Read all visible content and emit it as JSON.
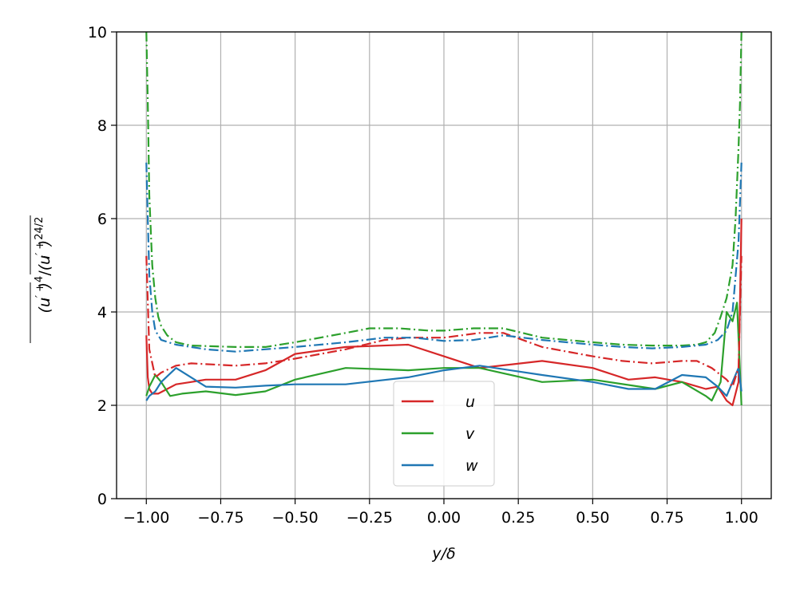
{
  "chart_data": {
    "type": "line",
    "xlabel": "y/δ",
    "ylabel": "(u′ᵢ⁺)⁴/(u′ᵢ⁺)²^4/2",
    "xlim": [
      -1.1,
      1.1
    ],
    "ylim": [
      0,
      10
    ],
    "xticks": [
      -1.0,
      -0.75,
      -0.5,
      -0.25,
      0.0,
      0.25,
      0.5,
      0.75,
      1.0
    ],
    "xtick_labels": [
      "−1.00",
      "−0.75",
      "−0.50",
      "−0.25",
      "0.00",
      "0.25",
      "0.50",
      "0.75",
      "1.00"
    ],
    "yticks": [
      0,
      2,
      4,
      6,
      8,
      10
    ],
    "ytick_labels": [
      "0",
      "2",
      "4",
      "6",
      "8",
      "10"
    ],
    "grid": true,
    "legend_position": "bottom-center",
    "colors": {
      "u": "#d62728",
      "v": "#2ca02c",
      "w": "#1f77b4"
    },
    "legend": [
      {
        "label": "u",
        "color": "#d62728"
      },
      {
        "label": "v",
        "color": "#2ca02c"
      },
      {
        "label": "w",
        "color": "#1f77b4"
      }
    ],
    "series": [
      {
        "name": "u",
        "color": "#d62728",
        "style": "solid",
        "x": [
          -1.0,
          -0.995,
          -0.99,
          -0.98,
          -0.96,
          -0.93,
          -0.9,
          -0.85,
          -0.8,
          -0.7,
          -0.6,
          -0.5,
          -0.33,
          -0.12,
          0.0,
          0.12,
          0.33,
          0.5,
          0.62,
          0.71,
          0.8,
          0.88,
          0.92,
          0.95,
          0.97,
          0.99,
          1.0
        ],
        "y": [
          3.5,
          2.6,
          2.35,
          2.25,
          2.25,
          2.35,
          2.45,
          2.5,
          2.55,
          2.55,
          2.75,
          3.1,
          3.25,
          3.3,
          3.05,
          2.8,
          2.95,
          2.8,
          2.55,
          2.6,
          2.5,
          2.35,
          2.4,
          2.1,
          2.0,
          2.5,
          6.0
        ]
      },
      {
        "name": "v",
        "color": "#2ca02c",
        "style": "solid",
        "x": [
          -1.0,
          -0.99,
          -0.97,
          -0.95,
          -0.92,
          -0.88,
          -0.8,
          -0.7,
          -0.6,
          -0.5,
          -0.33,
          -0.12,
          0.0,
          0.12,
          0.33,
          0.5,
          0.71,
          0.8,
          0.88,
          0.9,
          0.93,
          0.95,
          0.97,
          0.985,
          1.0
        ],
        "y": [
          2.2,
          2.4,
          2.65,
          2.5,
          2.2,
          2.25,
          2.3,
          2.22,
          2.3,
          2.55,
          2.8,
          2.75,
          2.8,
          2.8,
          2.5,
          2.55,
          2.35,
          2.5,
          2.2,
          2.1,
          2.5,
          4.0,
          3.8,
          4.2,
          2.0
        ]
      },
      {
        "name": "w",
        "color": "#1f77b4",
        "style": "solid",
        "x": [
          -1.0,
          -0.99,
          -0.97,
          -0.95,
          -0.9,
          -0.8,
          -0.7,
          -0.6,
          -0.5,
          -0.33,
          -0.12,
          0.0,
          0.12,
          0.33,
          0.5,
          0.62,
          0.71,
          0.8,
          0.88,
          0.92,
          0.95,
          0.97,
          0.99,
          1.0
        ],
        "y": [
          2.1,
          2.2,
          2.3,
          2.5,
          2.8,
          2.4,
          2.38,
          2.42,
          2.45,
          2.45,
          2.6,
          2.75,
          2.85,
          2.65,
          2.5,
          2.35,
          2.35,
          2.65,
          2.6,
          2.4,
          2.2,
          2.5,
          2.8,
          2.3
        ]
      },
      {
        "name": "",
        "color": "#d62728",
        "style": "dashdot",
        "x": [
          -1.0,
          -0.99,
          -0.97,
          -0.95,
          -0.9,
          -0.85,
          -0.7,
          -0.6,
          -0.5,
          -0.33,
          -0.2,
          -0.12,
          0.0,
          0.12,
          0.2,
          0.33,
          0.5,
          0.6,
          0.7,
          0.8,
          0.85,
          0.9,
          0.95,
          0.97,
          0.99,
          1.0
        ],
        "y": [
          5.2,
          3.2,
          2.6,
          2.7,
          2.85,
          2.9,
          2.85,
          2.9,
          3.0,
          3.2,
          3.4,
          3.45,
          3.45,
          3.55,
          3.55,
          3.25,
          3.05,
          2.95,
          2.9,
          2.95,
          2.95,
          2.8,
          2.55,
          2.4,
          2.8,
          5.2
        ]
      },
      {
        "name": "",
        "color": "#2ca02c",
        "style": "dashdot",
        "x": [
          -1.0,
          -0.995,
          -0.99,
          -0.98,
          -0.97,
          -0.96,
          -0.95,
          -0.93,
          -0.9,
          -0.85,
          -0.7,
          -0.6,
          -0.5,
          -0.33,
          -0.25,
          -0.15,
          -0.05,
          0.0,
          0.1,
          0.2,
          0.33,
          0.5,
          0.6,
          0.7,
          0.8,
          0.85,
          0.88,
          0.91,
          0.93,
          0.95,
          0.97,
          0.98,
          0.99,
          0.995,
          1.0
        ],
        "y": [
          10.0,
          8.5,
          6.5,
          5.0,
          4.3,
          3.9,
          3.7,
          3.5,
          3.35,
          3.28,
          3.25,
          3.25,
          3.35,
          3.55,
          3.65,
          3.65,
          3.6,
          3.6,
          3.65,
          3.65,
          3.45,
          3.35,
          3.3,
          3.28,
          3.28,
          3.3,
          3.35,
          3.55,
          3.9,
          4.3,
          5.0,
          6.0,
          7.5,
          8.5,
          10.0
        ]
      },
      {
        "name": "",
        "color": "#1f77b4",
        "style": "dashdot",
        "x": [
          -1.0,
          -0.995,
          -0.99,
          -0.98,
          -0.97,
          -0.95,
          -0.9,
          -0.8,
          -0.7,
          -0.6,
          -0.5,
          -0.33,
          -0.2,
          -0.1,
          0.0,
          0.1,
          0.2,
          0.33,
          0.5,
          0.6,
          0.7,
          0.8,
          0.88,
          0.92,
          0.95,
          0.97,
          0.99,
          1.0
        ],
        "y": [
          7.2,
          6.0,
          4.8,
          4.0,
          3.6,
          3.4,
          3.3,
          3.2,
          3.15,
          3.2,
          3.25,
          3.35,
          3.45,
          3.45,
          3.38,
          3.4,
          3.5,
          3.4,
          3.3,
          3.25,
          3.22,
          3.25,
          3.3,
          3.4,
          3.6,
          4.0,
          5.5,
          7.2
        ]
      }
    ]
  }
}
